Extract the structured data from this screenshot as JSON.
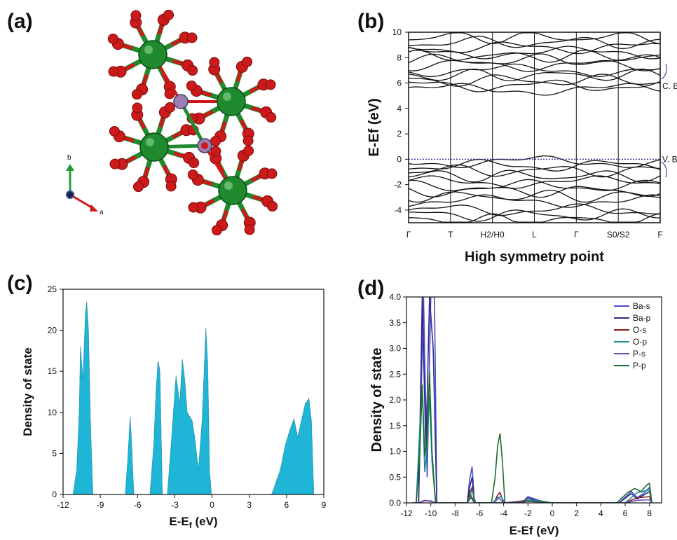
{
  "panels": {
    "a": {
      "label": "(a)",
      "axes": {
        "b": "b",
        "a": "a"
      }
    },
    "b": {
      "label": "(b)"
    },
    "c": {
      "label": "(c)"
    },
    "d": {
      "label": "(d)"
    }
  },
  "colors": {
    "ba_atom": "#1f8a2e",
    "o_atom": "#cc1a1a",
    "p_atom": "#9a7fb0",
    "dos_fill": "#1fb5d6",
    "fermi_line": "#3d3d9e"
  },
  "chart_data": [
    {
      "panel": "b",
      "type": "line",
      "ylabel": "E-Ef (eV)",
      "xlabel": "High symmetry point",
      "ylim": [
        -5,
        10
      ],
      "yticks": [
        -4,
        -2,
        0,
        2,
        4,
        6,
        8,
        10
      ],
      "kpoints": [
        "Γ",
        "T",
        "H2/H0",
        "L",
        "Γ",
        "S0/S2",
        "F"
      ],
      "annotations": [
        "C. B",
        "V. B"
      ],
      "conduction_band_levels": [
        5.5,
        5.8,
        6.2,
        6.6,
        7.0,
        7.4,
        7.8,
        8.1,
        8.4,
        8.8,
        9.2,
        9.6
      ],
      "valence_band_levels": [
        -0.2,
        -0.5,
        -0.9,
        -1.3,
        -1.8,
        -2.1,
        -2.5,
        -2.9,
        -3.3,
        -4.0,
        -4.4,
        -4.8
      ],
      "fermi_level": 0
    },
    {
      "panel": "c",
      "type": "area",
      "xlabel": "E-E",
      "xlabel_sub": "f",
      "xlabel_unit": " (eV)",
      "ylabel": "Density of state",
      "xlim": [
        -12,
        9
      ],
      "ylim": [
        0,
        25
      ],
      "xticks": [
        -12,
        -9,
        -6,
        -3,
        0,
        3,
        6,
        9
      ],
      "yticks": [
        0,
        5,
        10,
        15,
        20,
        25
      ],
      "x": [
        -11.2,
        -10.9,
        -10.7,
        -10.6,
        -10.4,
        -10.2,
        -10.1,
        -9.95,
        -9.8,
        -9.6,
        -7.0,
        -6.8,
        -6.6,
        -6.5,
        -6.3,
        -5.0,
        -4.7,
        -4.5,
        -4.35,
        -4.2,
        -4.0,
        -3.6,
        -3.3,
        -2.9,
        -2.6,
        -2.4,
        -2.2,
        -2.0,
        -1.8,
        -1.6,
        -1.4,
        -1.1,
        -0.8,
        -0.5,
        -0.35,
        -0.2,
        -0.05,
        0.1,
        4.8,
        5.5,
        5.9,
        6.3,
        6.6,
        6.9,
        7.2,
        7.5,
        7.8,
        8.0,
        8.2
      ],
      "y": [
        0,
        3,
        10,
        18,
        14,
        22,
        23.5,
        20,
        9,
        0,
        0,
        4,
        9.5,
        7,
        0,
        0,
        6,
        13,
        16.3,
        15,
        0,
        0,
        6,
        14.5,
        11,
        16.5,
        14,
        10,
        9.5,
        9,
        7,
        3,
        9,
        20.3,
        16,
        3,
        0,
        0,
        0,
        3,
        6,
        8,
        9.2,
        7,
        9,
        11,
        11.7,
        9,
        0
      ]
    },
    {
      "panel": "d",
      "type": "line",
      "xlabel": "E-Ef (eV)",
      "ylabel": "Density of state",
      "xlim": [
        -12,
        9
      ],
      "ylim": [
        0,
        4
      ],
      "xticks": [
        -12,
        -10,
        -8,
        -6,
        -4,
        -2,
        0,
        2,
        4,
        6,
        8
      ],
      "yticks": [
        0.0,
        0.5,
        1.0,
        1.5,
        2.0,
        2.5,
        3.0,
        3.5,
        4.0
      ],
      "legend": "top-right",
      "series": [
        {
          "name": "Ba-s",
          "color": "#4a4acb",
          "x": [
            -11.5,
            -11,
            -10.6,
            -10.3,
            -10.0,
            -9.7,
            -9.5,
            -7.0,
            -6.8,
            -6.6,
            -6.4,
            -5,
            -2.5,
            -2,
            -1.5,
            -1,
            0,
            5.5,
            6.5,
            7,
            7.5,
            8,
            8.2
          ],
          "y": [
            0,
            0,
            4.0,
            0.5,
            4.0,
            4.0,
            0,
            0,
            0.45,
            0.7,
            0,
            0,
            0,
            0.12,
            0.08,
            0.04,
            0,
            0,
            0.22,
            0.1,
            0.18,
            0.3,
            0
          ]
        },
        {
          "name": "Ba-p",
          "color": "#2c2c8a",
          "x": [
            -11.5,
            -11,
            -10.7,
            -10.4,
            -10.1,
            -9.8,
            -9.5,
            -7.0,
            -6.8,
            -6.6,
            -6.4,
            -5,
            -2.5,
            -2,
            -1.5,
            -1,
            0,
            5.5,
            6.5,
            7,
            7.5,
            8,
            8.2
          ],
          "y": [
            0,
            0,
            4.0,
            1.0,
            4.0,
            3.0,
            0,
            0,
            0.3,
            0.5,
            0,
            0,
            0,
            0.1,
            0.06,
            0.03,
            0,
            0,
            0.18,
            0.08,
            0.15,
            0.22,
            0
          ]
        },
        {
          "name": "O-s",
          "color": "#8a1a1a",
          "x": [
            -11,
            -10.5,
            -10,
            -9.6,
            -7.0,
            -6.8,
            -6.6,
            -6.4,
            -4.8,
            -4.5,
            -4.3,
            -4.0,
            -2,
            0,
            6,
            7,
            8,
            8.2
          ],
          "y": [
            0,
            0.05,
            0.03,
            0,
            0,
            0.2,
            0.3,
            0,
            0,
            0.15,
            0.2,
            0,
            0.05,
            0,
            0,
            0.1,
            0.12,
            0
          ]
        },
        {
          "name": "O-p",
          "color": "#178f8f",
          "x": [
            -11.2,
            -10.9,
            -10.7,
            -10.5,
            -10.3,
            -10.1,
            -9.9,
            -9.6,
            -7.0,
            -6.6,
            -6.3,
            -4.9,
            -4.5,
            -4.2,
            -3.9,
            -2.5,
            -2,
            -1,
            0,
            6,
            7,
            8,
            8.2
          ],
          "y": [
            0,
            1.5,
            2.3,
            0.6,
            1.1,
            2.1,
            0.8,
            0,
            0,
            0.25,
            0,
            0,
            0.1,
            0.12,
            0,
            0,
            0.06,
            0.03,
            0,
            0,
            0.2,
            0.25,
            0
          ]
        },
        {
          "name": "P-s",
          "color": "#6a50c8",
          "x": [
            -11,
            -10.5,
            -10,
            -9.6,
            -7.0,
            -6.7,
            -6.4,
            -4.8,
            -4.4,
            -4.0,
            -2,
            0,
            6,
            7,
            8,
            8.2
          ],
          "y": [
            0,
            0.04,
            0.04,
            0,
            0,
            0.1,
            0,
            0,
            0.1,
            0,
            0.03,
            0,
            0,
            0.05,
            0.06,
            0
          ]
        },
        {
          "name": "P-p",
          "color": "#1f6b2e",
          "x": [
            -11.2,
            -10.9,
            -10.7,
            -10.5,
            -10.3,
            -10.1,
            -9.9,
            -9.6,
            -7.0,
            -6.7,
            -6.4,
            -5.0,
            -4.7,
            -4.5,
            -4.3,
            -4.1,
            -3.9,
            -2.5,
            -2,
            -1,
            0,
            5.3,
            6.2,
            6.8,
            7.3,
            7.8,
            8.0,
            8.2
          ],
          "y": [
            0,
            1.0,
            2.3,
            0.9,
            1.3,
            2.55,
            1.0,
            0,
            0,
            0.15,
            0,
            0,
            0.5,
            1.1,
            1.35,
            0.8,
            0,
            0,
            0.04,
            0.02,
            0,
            0,
            0.2,
            0.28,
            0.22,
            0.35,
            0.38,
            0
          ]
        }
      ]
    }
  ]
}
